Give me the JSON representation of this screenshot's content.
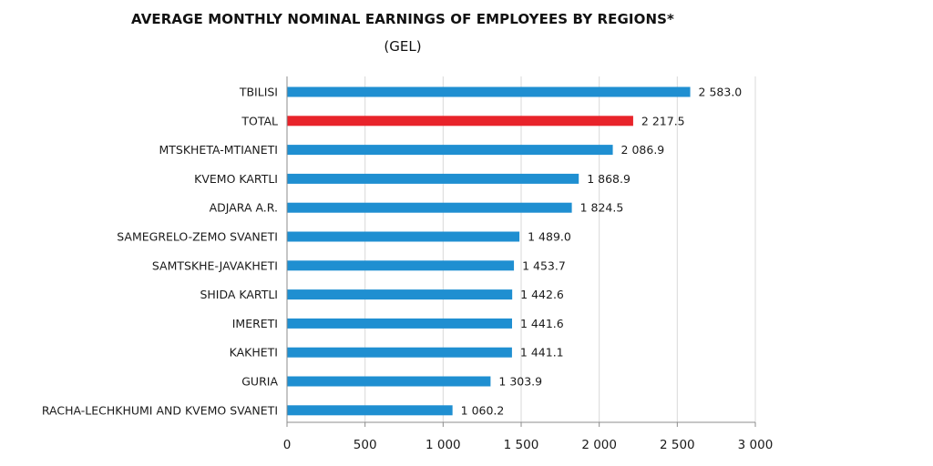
{
  "chart_data": {
    "type": "bar",
    "orientation": "horizontal",
    "title": "AVERAGE MONTHLY NOMINAL EARNINGS OF EMPLOYEES BY REGIONS*",
    "subtitle": "(GEL)",
    "categories": [
      "TBILISI",
      "TOTAL",
      "MTSKHETA-MTIANETI",
      "KVEMO KARTLI",
      "ADJARA A.R.",
      "SAMEGRELO-ZEMO SVANETI",
      "SAMTSKHE-JAVAKHETI",
      "SHIDA KARTLI",
      "IMERETI",
      "KAKHETI",
      "GURIA",
      "RACHA-LECHKHUMI AND KVEMO SVANETI"
    ],
    "values": [
      2583.0,
      2217.5,
      2086.9,
      1868.9,
      1824.5,
      1489.0,
      1453.7,
      1442.6,
      1441.6,
      1441.1,
      1303.9,
      1060.2
    ],
    "value_labels": [
      "2 583.0",
      "2 217.5",
      "2 086.9",
      "1 868.9",
      "1 824.5",
      "1 489.0",
      "1 453.7",
      "1 442.6",
      "1 441.6",
      "1 441.1",
      "1 303.9",
      "1 060.2"
    ],
    "bar_colors": [
      "#1f8fd1",
      "#e8232a",
      "#1f8fd1",
      "#1f8fd1",
      "#1f8fd1",
      "#1f8fd1",
      "#1f8fd1",
      "#1f8fd1",
      "#1f8fd1",
      "#1f8fd1",
      "#1f8fd1",
      "#1f8fd1"
    ],
    "xlim": [
      0,
      3000
    ],
    "x_ticks": [
      0,
      500,
      1000,
      1500,
      2000,
      2500,
      3000
    ],
    "x_tick_labels": [
      "0",
      "500",
      "1 000",
      "1 500",
      "2 000",
      "2 500",
      "3 000"
    ],
    "xlabel": "",
    "ylabel": "",
    "grid": "vertical",
    "legend": "none",
    "grid_color": "#d9d9d9",
    "axis_color": "#8c8c8c"
  }
}
